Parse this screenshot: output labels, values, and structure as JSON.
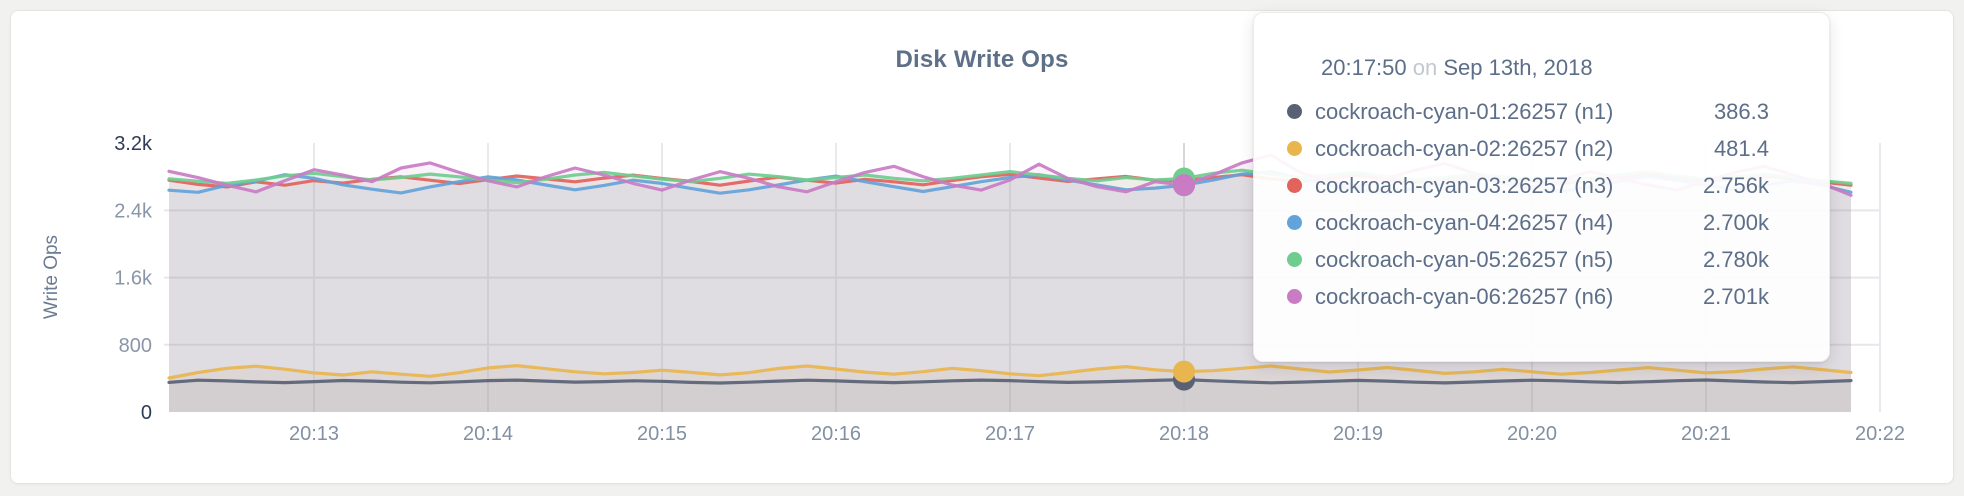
{
  "page": {
    "background": "#f1f1ef"
  },
  "chart": {
    "title": "Disk Write Ops"
  },
  "chart_data": {
    "type": "line",
    "title": "Disk Write Ops",
    "xlabel": "",
    "ylabel": "Write Ops",
    "ylim": [
      0,
      3200
    ],
    "grid": true,
    "legend_position": "none",
    "x_start_time": "20:12:10",
    "x_interval_seconds": 10,
    "x_tick_labels": [
      "20:13",
      "20:14",
      "20:15",
      "20:16",
      "20:17",
      "20:18",
      "20:19",
      "20:20",
      "20:21",
      "20:22"
    ],
    "y_ticks": [
      {
        "value": 0,
        "label": "0",
        "strong": true,
        "gridline": false
      },
      {
        "value": 800,
        "label": "800",
        "strong": false,
        "gridline": true
      },
      {
        "value": 1600,
        "label": "1.6k",
        "strong": false,
        "gridline": true
      },
      {
        "value": 2400,
        "label": "2.4k",
        "strong": false,
        "gridline": true
      },
      {
        "value": 3200,
        "label": "3.2k",
        "strong": true,
        "gridline": false
      }
    ],
    "series": [
      {
        "name": "cockroach-cyan-01:26257 (n1)",
        "color": "#596275",
        "values": [
          352,
          378,
          370,
          358,
          350,
          362,
          375,
          368,
          355,
          348,
          360,
          374,
          380,
          368,
          356,
          362,
          372,
          366,
          352,
          345,
          355,
          368,
          378,
          370,
          358,
          350,
          360,
          372,
          380,
          374,
          362,
          352,
          358,
          368,
          376,
          386.3,
          372,
          358,
          348,
          356,
          366,
          376,
          368,
          355,
          347,
          357,
          369,
          379,
          371,
          359,
          351,
          361,
          373,
          381,
          369,
          357,
          350,
          362,
          374
        ]
      },
      {
        "name": "cockroach-cyan-02:26257 (n2)",
        "color": "#e8b54e",
        "values": [
          405,
          470,
          520,
          545,
          510,
          465,
          440,
          478,
          450,
          425,
          468,
          525,
          552,
          515,
          478,
          455,
          470,
          498,
          472,
          442,
          468,
          518,
          548,
          512,
          475,
          450,
          480,
          520,
          492,
          455,
          432,
          470,
          512,
          540,
          502,
          481.4,
          492,
          520,
          548,
          512,
          476,
          500,
          530,
          495,
          460,
          478,
          508,
          478,
          450,
          470,
          500,
          528,
          498,
          465,
          480,
          512,
          538,
          505,
          470
        ]
      },
      {
        "name": "cockroach-cyan-03:26257 (n3)",
        "color": "#e2625c",
        "values": [
          2760,
          2710,
          2680,
          2740,
          2700,
          2755,
          2725,
          2770,
          2800,
          2760,
          2720,
          2765,
          2810,
          2775,
          2740,
          2785,
          2820,
          2780,
          2745,
          2700,
          2750,
          2795,
          2760,
          2725,
          2770,
          2740,
          2705,
          2755,
          2800,
          2830,
          2785,
          2745,
          2775,
          2805,
          2760,
          2756,
          2790,
          2825,
          2775,
          2740,
          2780,
          2815,
          2765,
          2730,
          2770,
          2805,
          2780,
          2748,
          2715,
          2760,
          2790,
          2822,
          2780,
          2750,
          2782,
          2812,
          2770,
          2738,
          2700
        ]
      },
      {
        "name": "cockroach-cyan-04:26257 (n4)",
        "color": "#64a3d9",
        "values": [
          2640,
          2615,
          2700,
          2748,
          2825,
          2782,
          2705,
          2652,
          2608,
          2680,
          2742,
          2800,
          2762,
          2702,
          2645,
          2698,
          2760,
          2722,
          2662,
          2605,
          2645,
          2702,
          2762,
          2808,
          2742,
          2682,
          2625,
          2682,
          2742,
          2792,
          2825,
          2762,
          2702,
          2645,
          2665,
          2700,
          2762,
          2832,
          2862,
          2782,
          2702,
          2645,
          2605,
          2662,
          2722,
          2782,
          2742,
          2682,
          2625,
          2682,
          2742,
          2802,
          2762,
          2702,
          2652,
          2702,
          2752,
          2700,
          2615
        ]
      },
      {
        "name": "cockroach-cyan-05:26257 (n5)",
        "color": "#6fcd8f",
        "values": [
          2775,
          2748,
          2722,
          2762,
          2812,
          2842,
          2802,
          2762,
          2792,
          2832,
          2800,
          2762,
          2730,
          2772,
          2822,
          2852,
          2812,
          2772,
          2742,
          2782,
          2832,
          2802,
          2762,
          2792,
          2822,
          2782,
          2752,
          2782,
          2822,
          2862,
          2822,
          2782,
          2752,
          2792,
          2762,
          2780,
          2842,
          2878,
          2832,
          2792,
          2822,
          2852,
          2802,
          2762,
          2792,
          2832,
          2802,
          2772,
          2742,
          2782,
          2822,
          2858,
          2812,
          2772,
          2802,
          2832,
          2792,
          2752,
          2722
        ]
      },
      {
        "name": "cockroach-cyan-06:26257 (n6)",
        "color": "#c97cc4",
        "values": [
          2865,
          2790,
          2700,
          2620,
          2755,
          2885,
          2820,
          2742,
          2905,
          2965,
          2852,
          2752,
          2680,
          2802,
          2905,
          2822,
          2722,
          2642,
          2762,
          2862,
          2782,
          2682,
          2622,
          2742,
          2852,
          2925,
          2802,
          2702,
          2642,
          2762,
          2950,
          2780,
          2682,
          2622,
          2742,
          2701,
          2822,
          2965,
          3060,
          2852,
          2752,
          2682,
          2782,
          2882,
          2960,
          2842,
          2722,
          2652,
          2762,
          2862,
          2782,
          2702,
          2642,
          2752,
          2852,
          2925,
          2822,
          2722,
          2580
        ]
      }
    ]
  },
  "tooltip": {
    "time": "20:17:50",
    "conjunction": "on",
    "date": "Sep 13th, 2018",
    "hover_index": 35,
    "rows": [
      {
        "name": "cockroach-cyan-01:26257 (n1)",
        "value": "386.3",
        "color": "#596275"
      },
      {
        "name": "cockroach-cyan-02:26257 (n2)",
        "value": "481.4",
        "color": "#e8b54e"
      },
      {
        "name": "cockroach-cyan-03:26257 (n3)",
        "value": "2.756k",
        "color": "#e2625c"
      },
      {
        "name": "cockroach-cyan-04:26257 (n4)",
        "value": "2.700k",
        "color": "#64a3d9"
      },
      {
        "name": "cockroach-cyan-05:26257 (n5)",
        "value": "2.780k",
        "color": "#6fcd8f"
      },
      {
        "name": "cockroach-cyan-06:26257 (n6)",
        "value": "2.701k",
        "color": "#c97cc4"
      }
    ]
  }
}
